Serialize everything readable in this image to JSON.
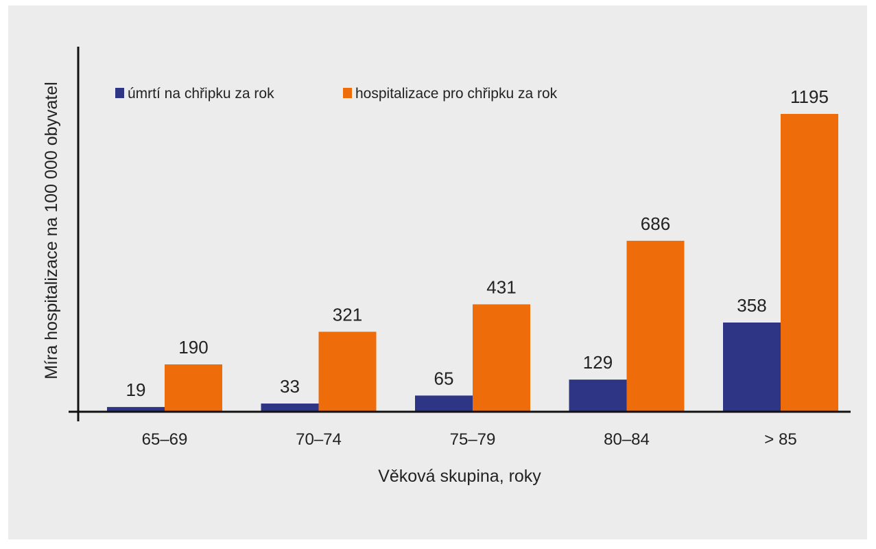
{
  "chart_data": {
    "type": "bar",
    "title": "",
    "xlabel": "Věková skupina, roky",
    "ylabel": "Míra hospitalizace na 100 000 obyvatel",
    "categories": [
      "65–69",
      "70–74",
      "75–79",
      "80–84",
      "> 85"
    ],
    "series": [
      {
        "name": "úmrtí na chřipku za rok",
        "color": "#2e3584",
        "values": [
          19,
          33,
          65,
          129,
          358
        ]
      },
      {
        "name": "hospitalizace pro chřipku za rok",
        "color": "#ef6c0b",
        "values": [
          190,
          321,
          431,
          686,
          1195
        ]
      }
    ],
    "ylim": [
      0,
      1195
    ],
    "grid": false,
    "legend_position": "top-left",
    "data_labels": true
  }
}
